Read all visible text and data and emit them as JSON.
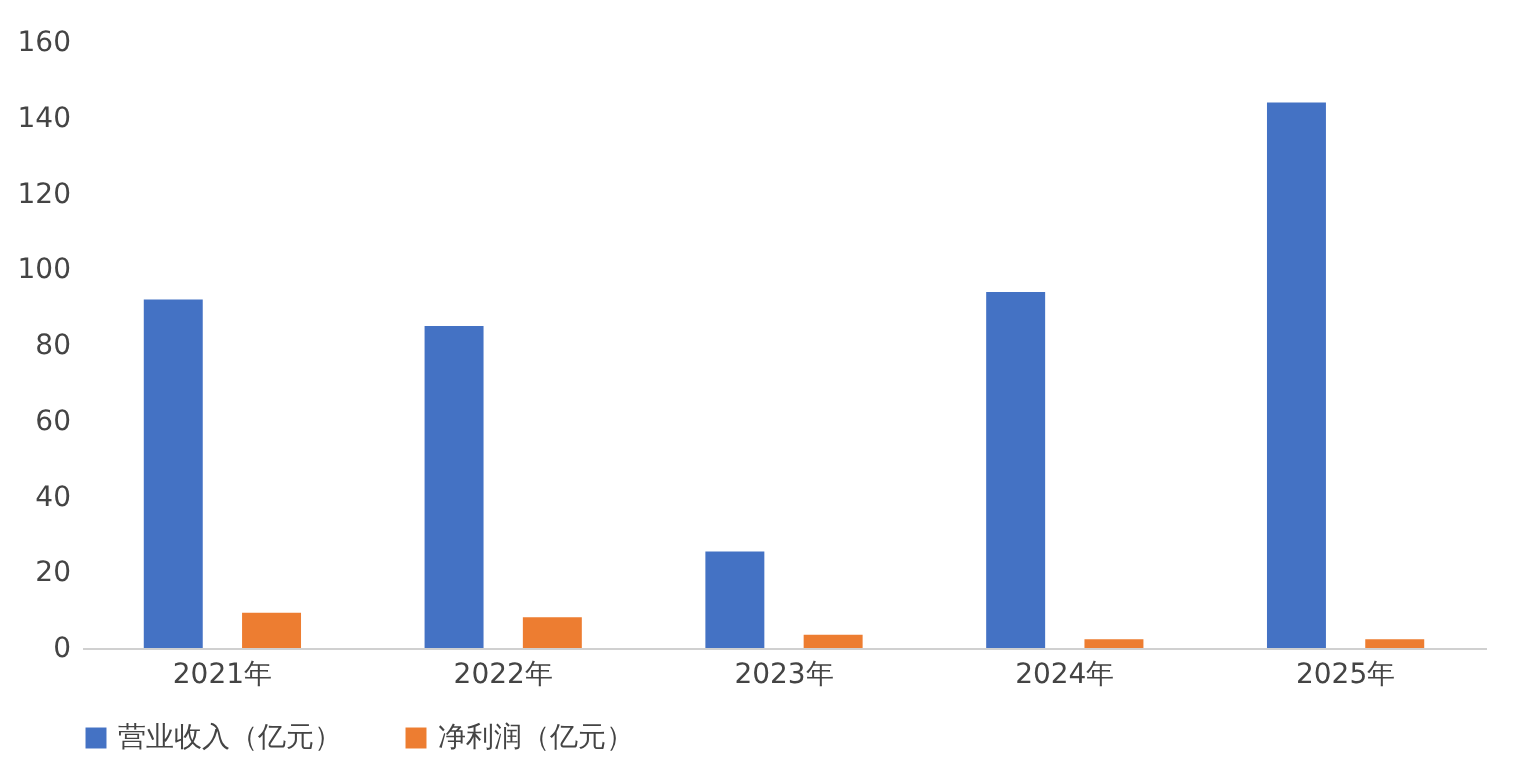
{
  "chart_data": {
    "type": "bar",
    "categories": [
      "2021年",
      "2022年",
      "2023年",
      "2024年",
      "2025年"
    ],
    "series": [
      {
        "name": "营业收入（亿元）",
        "color": "#4472c4",
        "values": [
          92,
          85,
          25.5,
          94,
          144
        ]
      },
      {
        "name": "净利润（亿元）",
        "color": "#ed7d31",
        "values": [
          9.3,
          8.1,
          3.5,
          2.3,
          2.3
        ]
      }
    ],
    "ylim": [
      0,
      160
    ],
    "yticks": [
      0,
      20,
      40,
      60,
      80,
      100,
      120,
      140,
      160
    ],
    "grid": false,
    "legend": "bottom"
  }
}
